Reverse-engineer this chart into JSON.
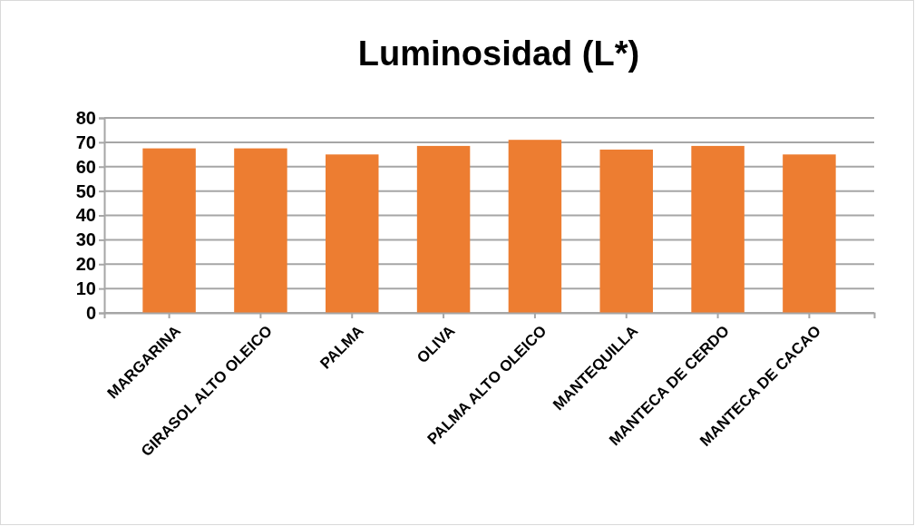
{
  "chart_data": {
    "type": "bar",
    "title": "Luminosidad (L*)",
    "categories": [
      "MARGARINA",
      "GIRASOL ALTO OLEICO",
      "PALMA",
      "OLIVA",
      "PALMA ALTO OLEICO",
      "MANTEQUILLA",
      "MANTECA DE CERDO",
      "MANTECA DE CACAO"
    ],
    "values": [
      67.5,
      67.5,
      65,
      68.5,
      71,
      67,
      68.5,
      65
    ],
    "color": "#ed7d31",
    "ylim": [
      0,
      80
    ],
    "yticks": [
      0,
      10,
      20,
      30,
      40,
      50,
      60,
      70,
      80
    ],
    "grid": "y"
  }
}
